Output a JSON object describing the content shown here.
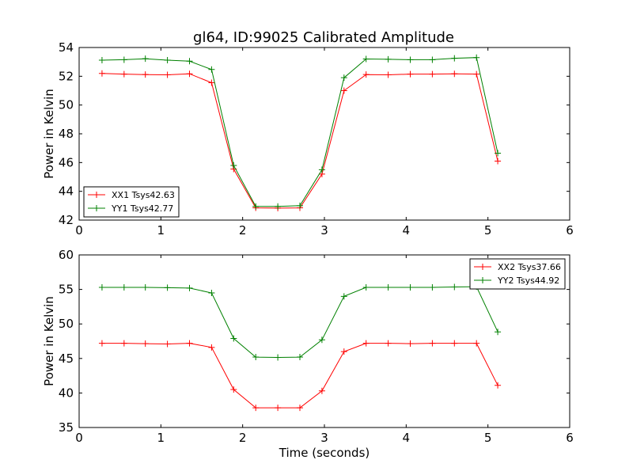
{
  "title": "gl64, ID:99025 Calibrated Amplitude",
  "chart_data": [
    {
      "type": "line",
      "ylabel": "Power in Kelvin",
      "xlabel": "",
      "xlim": [
        0,
        6
      ],
      "ylim": [
        42,
        54
      ],
      "xticks": [
        0,
        1,
        2,
        3,
        4,
        5,
        6
      ],
      "yticks": [
        42,
        44,
        46,
        48,
        50,
        52,
        54
      ],
      "legend_position": "lower-left",
      "x": [
        0.28,
        0.55,
        0.81,
        1.08,
        1.35,
        1.62,
        1.89,
        2.16,
        2.43,
        2.7,
        2.97,
        3.24,
        3.51,
        3.78,
        4.05,
        4.32,
        4.59,
        4.86,
        5.12
      ],
      "series": [
        {
          "name": "XX1 Tsys42.63",
          "color": "#ff0000",
          "values": [
            52.2,
            52.15,
            52.12,
            52.1,
            52.17,
            51.55,
            45.55,
            42.85,
            42.83,
            42.85,
            45.2,
            51.0,
            52.12,
            52.1,
            52.15,
            52.15,
            52.17,
            52.15,
            46.1
          ]
        },
        {
          "name": "YY1 Tsys42.77",
          "color": "#008000",
          "values": [
            53.12,
            53.15,
            53.22,
            53.12,
            53.05,
            52.47,
            45.8,
            42.95,
            42.95,
            43.0,
            45.5,
            51.9,
            53.2,
            53.18,
            53.15,
            53.15,
            53.25,
            53.3,
            46.65
          ]
        }
      ]
    },
    {
      "type": "line",
      "ylabel": "Power in Kelvin",
      "xlabel": "Time (seconds)",
      "xlim": [
        0,
        6
      ],
      "ylim": [
        35,
        60
      ],
      "xticks": [
        0,
        1,
        2,
        3,
        4,
        5,
        6
      ],
      "yticks": [
        35,
        40,
        45,
        50,
        55,
        60
      ],
      "legend_position": "upper-right",
      "x": [
        0.28,
        0.55,
        0.81,
        1.08,
        1.35,
        1.62,
        1.89,
        2.16,
        2.43,
        2.7,
        2.97,
        3.24,
        3.51,
        3.78,
        4.05,
        4.32,
        4.59,
        4.86,
        5.12
      ],
      "series": [
        {
          "name": "XX2 Tsys37.66",
          "color": "#ff0000",
          "values": [
            47.2,
            47.2,
            47.15,
            47.1,
            47.2,
            46.6,
            40.5,
            37.85,
            37.85,
            37.85,
            40.3,
            46.0,
            47.2,
            47.2,
            47.15,
            47.2,
            47.2,
            47.2,
            41.1
          ]
        },
        {
          "name": "YY2 Tsys44.92",
          "color": "#008000",
          "values": [
            55.3,
            55.3,
            55.3,
            55.25,
            55.2,
            54.5,
            47.9,
            45.2,
            45.15,
            45.2,
            47.7,
            54.0,
            55.3,
            55.3,
            55.3,
            55.3,
            55.35,
            55.4,
            48.85
          ]
        }
      ]
    }
  ]
}
